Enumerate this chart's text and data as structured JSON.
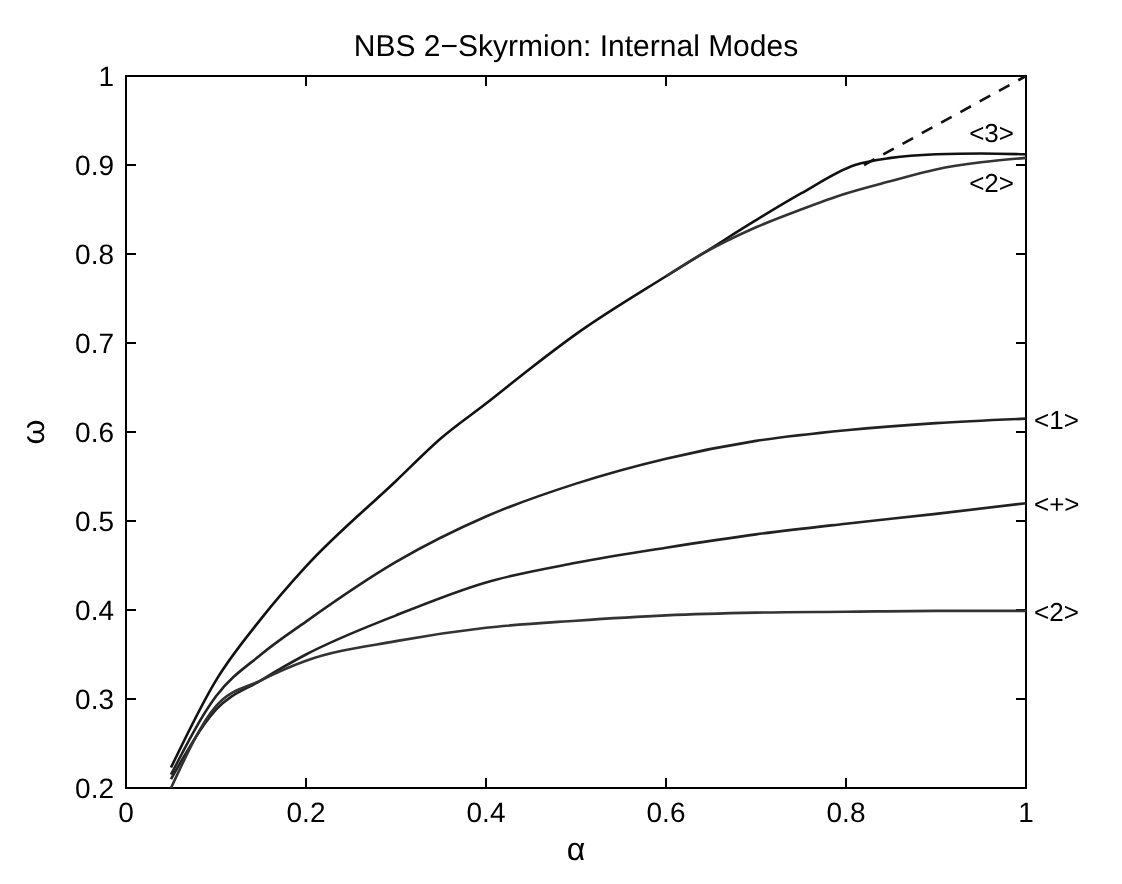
{
  "chart_data": {
    "type": "line",
    "title": "NBS 2−Skyrmion: Internal Modes",
    "xlabel": "α",
    "ylabel": "ω",
    "xlim": [
      0,
      1
    ],
    "ylim": [
      0.2,
      1
    ],
    "xticks": [
      0,
      0.2,
      0.4,
      0.6,
      0.8,
      1
    ],
    "yticks": [
      0.2,
      0.3,
      0.4,
      0.5,
      0.6,
      0.7,
      0.8,
      0.9,
      1
    ],
    "marker": "none",
    "series": [
      {
        "name": "<3>",
        "color": "#111111",
        "x": [
          0.05,
          0.1,
          0.15,
          0.2,
          0.3,
          0.35,
          0.4,
          0.45,
          0.5,
          0.6,
          0.64,
          0.7,
          0.75,
          0.81,
          0.85,
          0.9,
          0.95,
          1
        ],
        "values": [
          0.223,
          0.321,
          0.39,
          0.449,
          0.545,
          0.593,
          0.632,
          0.672,
          0.71,
          0.775,
          0.8,
          0.838,
          0.868,
          0.9,
          0.908,
          0.912,
          0.913,
          0.912
        ]
      },
      {
        "name": "<2>",
        "color": "#333333",
        "x": [
          0.6,
          0.64,
          0.7,
          0.75,
          0.8,
          0.85,
          0.9,
          0.95,
          1
        ],
        "values": [
          0.775,
          0.8,
          0.83,
          0.85,
          0.868,
          0.882,
          0.895,
          0.903,
          0.908
        ]
      },
      {
        "name": "<1>",
        "color": "#222222",
        "x": [
          0.05,
          0.1,
          0.15,
          0.2,
          0.3,
          0.4,
          0.5,
          0.6,
          0.7,
          0.8,
          0.9,
          1
        ],
        "values": [
          0.215,
          0.303,
          0.35,
          0.387,
          0.454,
          0.505,
          0.542,
          0.57,
          0.59,
          0.602,
          0.61,
          0.615
        ]
      },
      {
        "name": "<+>",
        "color": "#222222",
        "x": [
          0.05,
          0.1,
          0.15,
          0.2,
          0.3,
          0.4,
          0.5,
          0.6,
          0.7,
          0.8,
          0.9,
          1
        ],
        "values": [
          0.21,
          0.288,
          0.321,
          0.35,
          0.394,
          0.431,
          0.453,
          0.47,
          0.485,
          0.497,
          0.508,
          0.52
        ]
      },
      {
        "name": "<2>",
        "color": "#333333",
        "x": [
          0.05,
          0.1,
          0.15,
          0.2,
          0.3,
          0.4,
          0.5,
          0.6,
          0.7,
          0.8,
          0.9,
          1
        ],
        "values": [
          0.2,
          0.292,
          0.321,
          0.343,
          0.365,
          0.38,
          0.388,
          0.394,
          0.397,
          0.398,
          0.399,
          0.399
        ]
      },
      {
        "color": "#111111",
        "line_style": "dashed",
        "x": [
          0.82,
          1
        ],
        "values": [
          0.9,
          1
        ]
      }
    ]
  }
}
